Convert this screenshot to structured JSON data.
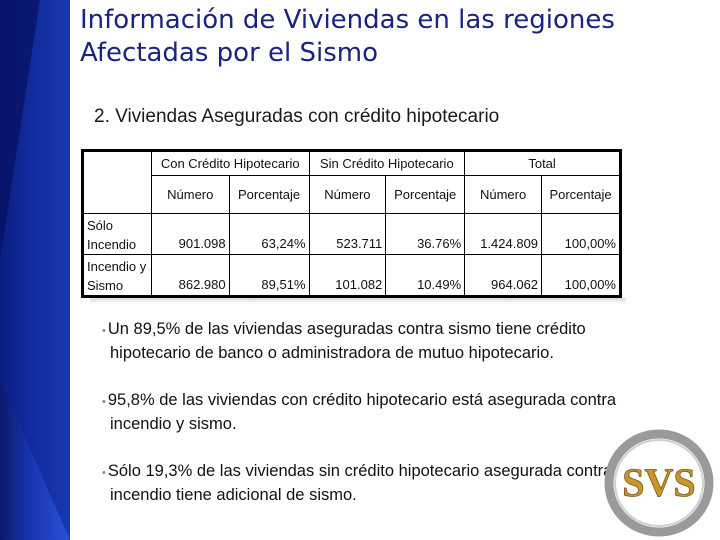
{
  "slide": {
    "title": "Información de Viviendas en las regiones Afectadas por el Sismo",
    "subtitle": "2. Viviendas Aseguradas con crédito hipotecario"
  },
  "table": {
    "group_headers": [
      "Con Crédito Hipotecario",
      "Sin Crédito Hipotecario",
      "Total"
    ],
    "sub_headers": [
      "Número",
      "Porcentaje",
      "Número",
      "Porcentaje",
      "Número",
      "Porcentaje"
    ],
    "rows": [
      {
        "label_1": "Sólo",
        "label_2": "Incendio",
        "cells": [
          "901.098",
          "63,24%",
          "523.711",
          "36.76%",
          "1.424.809",
          "100,00%"
        ]
      },
      {
        "label_1": "Incendio y",
        "label_2": "Sismo",
        "cells": [
          "862.980",
          "89,51%",
          "101.082",
          "10.49%",
          "964.062",
          "100,00%"
        ]
      }
    ]
  },
  "bullets": [
    "Un 89,5% de las viviendas aseguradas contra sismo tiene crédito hipotecario de banco o administradora de mutuo hipotecario.",
    "95,8% de las viviendas con crédito hipotecario está asegurada contra incendio y sismo.",
    "Sólo 19,3% de las viviendas sin crédito hipotecario asegurada contra incendio tiene adicional de sismo."
  ],
  "logo": {
    "text": "SVS",
    "icon": "svs-logo-icon"
  },
  "colors": {
    "sidebar": "#1836b0",
    "title": "#1a237e",
    "logo_gold": "#c8962a",
    "logo_ring": "#9a9a9a"
  }
}
